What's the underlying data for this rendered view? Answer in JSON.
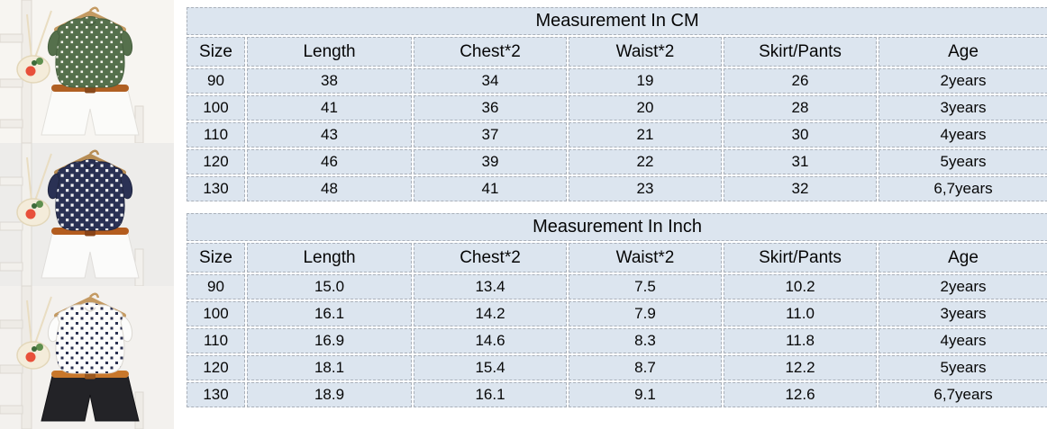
{
  "page": {
    "kind": "children clothing set size chart",
    "background": "#ffffff",
    "cell_background": "#dce5ef",
    "cell_border_color": "#a9b0ba",
    "text_color": "#060606"
  },
  "tables": [
    {
      "title": "Measurement In CM",
      "columns": [
        "Size",
        "Length",
        "Chest*2",
        "Waist*2",
        "Skirt/Pants",
        "Age"
      ],
      "rows": [
        [
          "90",
          "38",
          "34",
          "19",
          "26",
          "2years"
        ],
        [
          "100",
          "41",
          "36",
          "20",
          "28",
          "3years"
        ],
        [
          "110",
          "43",
          "37",
          "21",
          "30",
          "4years"
        ],
        [
          "120",
          "46",
          "39",
          "22",
          "31",
          "5years"
        ],
        [
          "130",
          "48",
          "41",
          "23",
          "32",
          "6,7years"
        ]
      ]
    },
    {
      "title": "Measurement In Inch",
      "columns": [
        "Size",
        "Length",
        "Chest*2",
        "Waist*2",
        "Skirt/Pants",
        "Age"
      ],
      "rows": [
        [
          "90",
          "15.0",
          "13.4",
          "7.5",
          "10.2",
          "2years"
        ],
        [
          "100",
          "16.1",
          "14.2",
          "7.9",
          "11.0",
          "3years"
        ],
        [
          "110",
          "16.9",
          "14.6",
          "8.3",
          "11.8",
          "4years"
        ],
        [
          "120",
          "18.1",
          "15.4",
          "8.7",
          "12.2",
          "5years"
        ],
        [
          "130",
          "18.9",
          "16.1",
          "9.1",
          "12.6",
          "6,7years"
        ]
      ]
    }
  ],
  "photos": [
    {
      "id": "product-photo-green-outfit",
      "alt": "green polka-dot sleeveless top with white shorts, brown belt and straw strawberry bag on ladder",
      "palette": {
        "bg": "#f7f5f1",
        "ladder": "#f0ede8",
        "ladderEdge": "#ddd8d0",
        "hanger": "#c49a62",
        "top": "#55704c",
        "topEdge": "#47603f",
        "dot": "#f4f2ea",
        "dotSize": 2.6,
        "belt": "#b06023",
        "buckle": "#8a4a1c",
        "shorts": "#fbfbf9",
        "shortsEdge": "#e2e0db",
        "bag": "#f4ecda",
        "bagEdge": "#e3d7ba",
        "strap": "#e9ddc2"
      }
    },
    {
      "id": "product-photo-navy-outfit",
      "alt": "navy top with white square dots, white shorts, brown belt and straw strawberry bag on ladder",
      "palette": {
        "bg": "#edecea",
        "ladder": "#f2f0ec",
        "ladderEdge": "#dcd8d2",
        "hanger": "#b78d55",
        "top": "#2a3154",
        "topEdge": "#1f2540",
        "dot": "#f2f3f5",
        "dotSize": 3.2,
        "belt": "#b35c1e",
        "buckle": "#8a4418",
        "shorts": "#fbfbfa",
        "shortsEdge": "#e0dedb",
        "bag": "#f4ecda",
        "bagEdge": "#e3d7ba",
        "strap": "#e9ddc2"
      }
    },
    {
      "id": "product-photo-white-outfit",
      "alt": "white top with navy dots, black shorts, orange belt and straw strawberry bag on ladder",
      "palette": {
        "bg": "#f3f1ee",
        "ladder": "#eeebe6",
        "ladderEdge": "#dcd8d1",
        "hanger": "#c49a62",
        "top": "#fcfcfb",
        "topEdge": "#dcd9d3",
        "dot": "#2b3150",
        "dotSize": 3.0,
        "belt": "#c8772b",
        "buckle": "#9a571c",
        "shorts": "#232327",
        "shortsEdge": "#121215",
        "bag": "#f4ecda",
        "bagEdge": "#e3d7ba",
        "strap": "#e9ddc2"
      }
    }
  ]
}
